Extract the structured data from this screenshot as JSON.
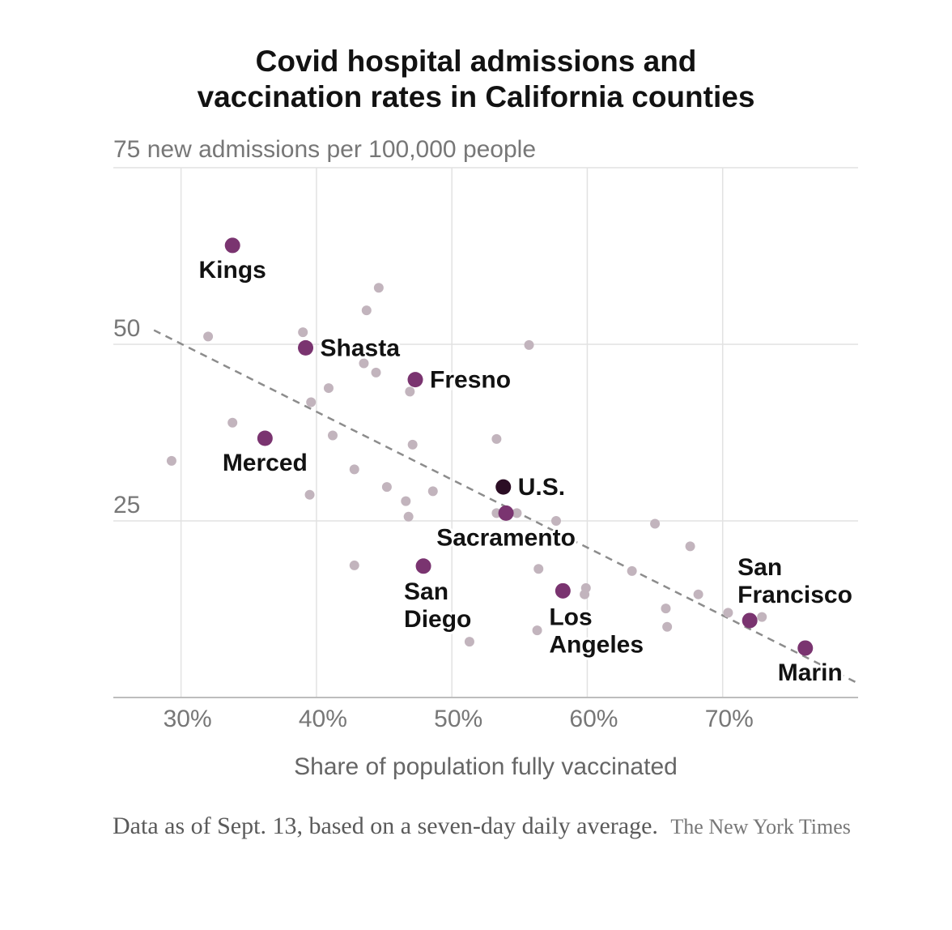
{
  "title_lines": [
    "Covid hospital admissions and",
    "vaccination rates in California counties"
  ],
  "note": "Data as of Sept. 13, based on a seven-day daily average.",
  "credit": "The New York Times",
  "colors": {
    "background": "#ffffff",
    "highlight": "#7a3470",
    "us": "#2b0d24",
    "other": "#c2b4bd",
    "trend": "#8c8c8c",
    "grid": "#e2e2e2",
    "axis_text": "#777777",
    "label_text": "#121212"
  },
  "chart_data": {
    "type": "scatter",
    "title": "Covid hospital admissions and vaccination rates in California counties",
    "xlabel": "Share of population fully vaccinated",
    "ylabel": "75 new admissions per 100,000 people",
    "xlim": [
      25,
      80
    ],
    "ylim": [
      0,
      75
    ],
    "x_ticks": [
      30,
      40,
      50,
      60,
      70
    ],
    "x_tick_labels": [
      "30%",
      "40%",
      "50%",
      "60%",
      "70%"
    ],
    "y_ticks": [
      25,
      50
    ],
    "y_tick_labels": [
      "25",
      "50"
    ],
    "y_top_label": "75 new admissions per 100,000 people",
    "grid": true,
    "trend_line": {
      "x": [
        28,
        80
      ],
      "y": [
        52,
        2
      ]
    },
    "labeled": [
      {
        "name": "Kings",
        "x": 33.8,
        "y": 64.0,
        "kind": "county",
        "label_lines": [
          "Kings"
        ],
        "label_pos": "below"
      },
      {
        "name": "Shasta",
        "x": 39.2,
        "y": 49.5,
        "kind": "county",
        "label_lines": [
          "Shasta"
        ],
        "label_pos": "right"
      },
      {
        "name": "Fresno",
        "x": 47.3,
        "y": 45.0,
        "kind": "county",
        "label_lines": [
          "Fresno"
        ],
        "label_pos": "right"
      },
      {
        "name": "Merced",
        "x": 36.2,
        "y": 36.7,
        "kind": "county",
        "label_lines": [
          "Merced"
        ],
        "label_pos": "below"
      },
      {
        "name": "U.S.",
        "x": 53.8,
        "y": 29.8,
        "kind": "us",
        "label_lines": [
          "U.S."
        ],
        "label_pos": "right"
      },
      {
        "name": "Sacramento",
        "x": 54.0,
        "y": 26.1,
        "kind": "county",
        "label_lines": [
          "Sacramento"
        ],
        "label_pos": "below"
      },
      {
        "name": "San Diego",
        "x": 47.9,
        "y": 18.6,
        "kind": "county",
        "label_lines": [
          "San",
          "Diego"
        ],
        "label_pos": "below"
      },
      {
        "name": "Los Angeles",
        "x": 58.2,
        "y": 15.1,
        "kind": "county",
        "label_lines": [
          "Los",
          "Angeles"
        ],
        "label_pos": "below"
      },
      {
        "name": "San Francisco",
        "x": 72.0,
        "y": 10.9,
        "kind": "county",
        "label_lines": [
          "San",
          "Francisco"
        ],
        "label_pos": "above"
      },
      {
        "name": "Marin",
        "x": 76.1,
        "y": 7.0,
        "kind": "county",
        "label_lines": [
          "Marin"
        ],
        "label_pos": "below"
      }
    ],
    "others": [
      {
        "x": 29.3,
        "y": 33.5
      },
      {
        "x": 32.0,
        "y": 51.1
      },
      {
        "x": 33.8,
        "y": 38.9
      },
      {
        "x": 39.0,
        "y": 51.7
      },
      {
        "x": 39.5,
        "y": 28.7
      },
      {
        "x": 39.6,
        "y": 41.8
      },
      {
        "x": 40.9,
        "y": 43.8
      },
      {
        "x": 41.2,
        "y": 37.1
      },
      {
        "x": 42.8,
        "y": 32.3
      },
      {
        "x": 42.8,
        "y": 18.7
      },
      {
        "x": 43.5,
        "y": 47.3
      },
      {
        "x": 43.7,
        "y": 54.8
      },
      {
        "x": 44.4,
        "y": 46.0
      },
      {
        "x": 44.6,
        "y": 58.0
      },
      {
        "x": 45.2,
        "y": 29.8
      },
      {
        "x": 46.6,
        "y": 27.8
      },
      {
        "x": 46.8,
        "y": 25.6
      },
      {
        "x": 46.9,
        "y": 43.3
      },
      {
        "x": 47.1,
        "y": 35.8
      },
      {
        "x": 48.6,
        "y": 29.2
      },
      {
        "x": 51.3,
        "y": 7.9
      },
      {
        "x": 53.3,
        "y": 36.6
      },
      {
        "x": 53.3,
        "y": 26.1
      },
      {
        "x": 54.8,
        "y": 26.1
      },
      {
        "x": 55.7,
        "y": 49.9
      },
      {
        "x": 56.3,
        "y": 9.5
      },
      {
        "x": 56.4,
        "y": 18.2
      },
      {
        "x": 57.7,
        "y": 25.0
      },
      {
        "x": 59.8,
        "y": 14.6
      },
      {
        "x": 59.9,
        "y": 15.5
      },
      {
        "x": 63.3,
        "y": 17.9
      },
      {
        "x": 65.0,
        "y": 24.6
      },
      {
        "x": 65.8,
        "y": 12.6
      },
      {
        "x": 65.9,
        "y": 10.0
      },
      {
        "x": 67.6,
        "y": 21.4
      },
      {
        "x": 68.2,
        "y": 14.6
      },
      {
        "x": 70.4,
        "y": 12.0
      },
      {
        "x": 72.9,
        "y": 11.4
      }
    ]
  }
}
